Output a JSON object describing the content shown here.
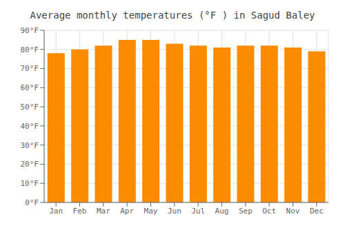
{
  "chart_data": {
    "type": "bar",
    "title": "Average monthly temperatures (°F ) in Sagud Baley",
    "categories": [
      "Jan",
      "Feb",
      "Mar",
      "Apr",
      "May",
      "Jun",
      "Jul",
      "Aug",
      "Sep",
      "Oct",
      "Nov",
      "Dec"
    ],
    "values": [
      78,
      80,
      82,
      85,
      85,
      83,
      82,
      81,
      82,
      82,
      81,
      79
    ],
    "color": "#FB8C00",
    "ylim": [
      0,
      90
    ],
    "yticks": [
      {
        "value": 0,
        "label": "0°F"
      },
      {
        "value": 10,
        "label": "10°F"
      },
      {
        "value": 20,
        "label": "20°F"
      },
      {
        "value": 30,
        "label": "30°F"
      },
      {
        "value": 40,
        "label": "40°F"
      },
      {
        "value": 50,
        "label": "50°F"
      },
      {
        "value": 60,
        "label": "60°F"
      },
      {
        "value": 70,
        "label": "70°F"
      },
      {
        "value": 80,
        "label": "80°F"
      },
      {
        "value": 90,
        "label": "90°F"
      }
    ],
    "grid": true
  }
}
